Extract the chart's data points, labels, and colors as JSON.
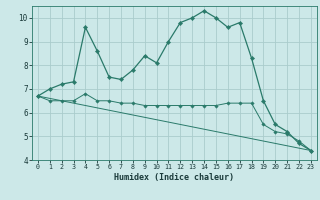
{
  "title": "",
  "xlabel": "Humidex (Indice chaleur)",
  "ylabel": "",
  "background_color": "#cce8e8",
  "grid_color": "#aacccc",
  "line_color": "#2a7a6a",
  "xlim": [
    -0.5,
    23.5
  ],
  "ylim": [
    4,
    10.5
  ],
  "yticks": [
    4,
    5,
    6,
    7,
    8,
    9,
    10
  ],
  "xticks": [
    0,
    1,
    2,
    3,
    4,
    5,
    6,
    7,
    8,
    9,
    10,
    11,
    12,
    13,
    14,
    15,
    16,
    17,
    18,
    19,
    20,
    21,
    22,
    23
  ],
  "curve1_x": [
    0,
    1,
    2,
    3,
    4,
    5,
    6,
    7,
    8,
    9,
    10,
    11,
    12,
    13,
    14,
    15,
    16,
    17,
    18,
    19,
    20,
    21,
    22,
    23
  ],
  "curve1_y": [
    6.7,
    7.0,
    7.2,
    7.3,
    9.6,
    8.6,
    7.5,
    7.4,
    7.8,
    8.4,
    8.1,
    9.0,
    9.8,
    10.0,
    10.3,
    10.0,
    9.6,
    9.8,
    8.3,
    6.5,
    5.5,
    5.2,
    4.7,
    4.4
  ],
  "curve2_x": [
    0,
    1,
    2,
    3,
    4,
    5,
    6,
    7,
    8,
    9,
    10,
    11,
    12,
    13,
    14,
    15,
    16,
    17,
    18,
    19,
    20,
    21,
    22,
    23
  ],
  "curve2_y": [
    6.7,
    6.5,
    6.5,
    6.5,
    6.8,
    6.5,
    6.5,
    6.4,
    6.4,
    6.3,
    6.3,
    6.3,
    6.3,
    6.3,
    6.3,
    6.3,
    6.4,
    6.4,
    6.4,
    5.5,
    5.2,
    5.1,
    4.8,
    4.4
  ],
  "curve3_x": [
    0,
    23
  ],
  "curve3_y": [
    6.7,
    4.4
  ]
}
